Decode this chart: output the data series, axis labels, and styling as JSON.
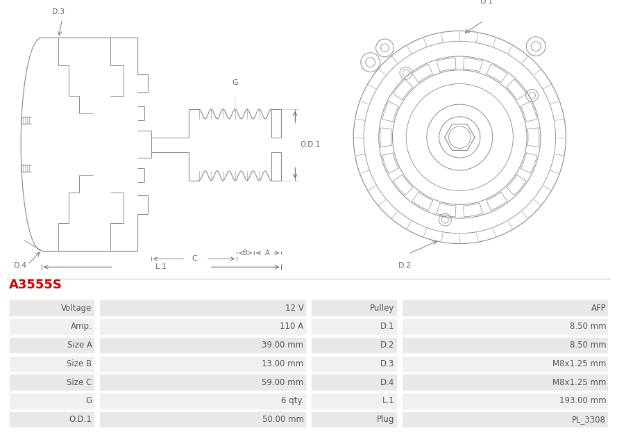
{
  "title": "A3555S",
  "title_color": "#cc0000",
  "bg_color": "#ffffff",
  "table": {
    "left_labels": [
      "Voltage",
      "Amp.",
      "Size A",
      "Size B",
      "Size C",
      "G",
      "O.D.1"
    ],
    "left_values": [
      "12 V",
      "110 A",
      "39.00 mm",
      "13.00 mm",
      "59.00 mm",
      "6 qty.",
      "50.00 mm"
    ],
    "right_labels": [
      "Pulley",
      "D.1",
      "D.2",
      "D.3",
      "D.4",
      "L.1",
      "Plug"
    ],
    "right_values": [
      "AFP",
      "8.50 mm",
      "8.50 mm",
      "M8x1.25 mm",
      "M8x1.25 mm",
      "193.00 mm",
      "PL_3308"
    ],
    "row_bg_odd": "#e8e8e8",
    "row_bg_even": "#f0f0f0",
    "border_color": "#ffffff",
    "text_color": "#555555"
  },
  "line_color": "#888888",
  "dim_color": "#666666"
}
